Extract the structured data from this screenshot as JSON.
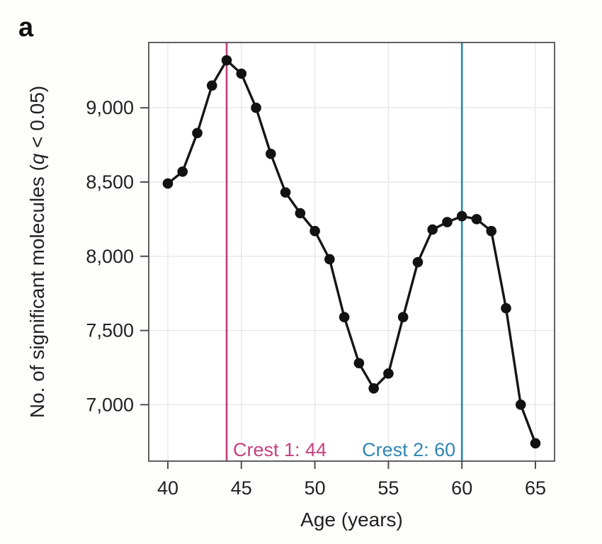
{
  "panel_label": "a",
  "colors": {
    "background": "#fdfdfc",
    "plot_background": "#ffffff",
    "line": "#161616",
    "marker": "#121212",
    "crest1": "#c5417f",
    "crest2": "#3186b1",
    "grid": "#e7e7e7",
    "border": "#4f4f4f",
    "tick": "#4f4f4f",
    "text": "#222222"
  },
  "chart_data": {
    "type": "line",
    "title": "",
    "xlabel": "Age (years)",
    "ylabel": {
      "text": "No. of significant molecules (q < 0.05)",
      "prefix": "No. of significant molecules (",
      "italic": "q",
      "suffix": " < 0.05)"
    },
    "x": [
      40,
      41,
      42,
      43,
      44,
      45,
      46,
      47,
      48,
      49,
      50,
      51,
      52,
      53,
      54,
      55,
      56,
      57,
      58,
      59,
      60,
      61,
      62,
      63,
      64,
      65
    ],
    "values": [
      8490,
      8570,
      8830,
      9150,
      9320,
      9230,
      9000,
      8690,
      8430,
      8290,
      8170,
      7980,
      7590,
      7280,
      7110,
      7210,
      7590,
      7960,
      8180,
      8230,
      8270,
      8250,
      8170,
      7650,
      7000,
      6740
    ],
    "x_ticks": [
      40,
      45,
      50,
      55,
      60,
      65
    ],
    "x_tick_labels": [
      "40",
      "45",
      "50",
      "55",
      "60",
      "65"
    ],
    "y_ticks": [
      7000,
      7500,
      8000,
      8500,
      9000
    ],
    "y_tick_labels": [
      "7,000",
      "7,500",
      "8,000",
      "8,500",
      "9,000"
    ],
    "xlim": [
      38.7,
      66.3
    ],
    "ylim": [
      6620,
      9440
    ],
    "grid": true,
    "legend": null,
    "annotations": [
      {
        "type": "vline",
        "x": 44,
        "color_key": "crest1",
        "label": "Crest 1: 44",
        "label_side": "right"
      },
      {
        "type": "vline",
        "x": 60,
        "color_key": "crest2",
        "label": "Crest 2: 60",
        "label_side": "left"
      }
    ]
  }
}
